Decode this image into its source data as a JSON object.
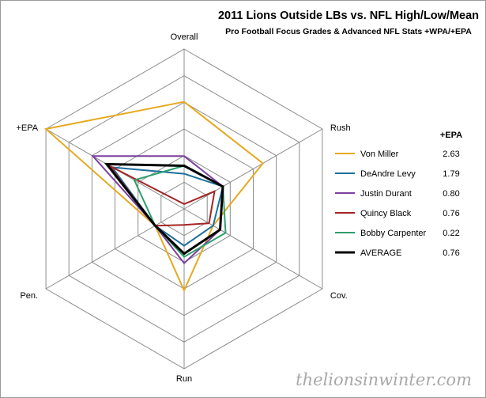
{
  "chart_data": {
    "type": "radar",
    "title": "2011 Lions Outside LBs vs. NFL High/Low/Mean",
    "subtitle": "Pro Football Focus Grades & Advanced NFL Stats +WPA/+EPA",
    "axes": [
      "Overall",
      "Rush",
      "Cov.",
      "Run",
      "Pen.",
      "+EPA"
    ],
    "rings": 6,
    "series": [
      {
        "name": "Von Miller",
        "color": "#E6A920",
        "width": 2,
        "epa": "2.63",
        "values": [
          0.67,
          0.57,
          0.21,
          0.51,
          0.21,
          1.0
        ]
      },
      {
        "name": "DeAndre Levy",
        "color": "#1F6F9E",
        "width": 2,
        "epa": "1.79",
        "values": [
          0.22,
          0.28,
          0.21,
          0.23,
          0.21,
          0.52
        ]
      },
      {
        "name": "Justin Durant",
        "color": "#7B3F9E",
        "width": 2,
        "epa": "0.80",
        "values": [
          0.33,
          0.28,
          0.26,
          0.34,
          0.21,
          0.66
        ]
      },
      {
        "name": "Quincy Black",
        "color": "#A52424",
        "width": 2,
        "epa": "0.76",
        "values": [
          0.03,
          0.22,
          0.18,
          0.1,
          0.21,
          0.54
        ]
      },
      {
        "name": "Bobby Carpenter",
        "color": "#2EA06B",
        "width": 2,
        "epa": "0.22",
        "values": [
          0.27,
          0.28,
          0.3,
          0.3,
          0.21,
          0.36
        ]
      },
      {
        "name": "AVERAGE",
        "color": "#000000",
        "width": 3,
        "epa": "0.76",
        "values": [
          0.27,
          0.28,
          0.26,
          0.28,
          0.21,
          0.56
        ]
      }
    ]
  },
  "legend": {
    "header": "+EPA"
  },
  "watermark": "thelionsinwinter.com"
}
